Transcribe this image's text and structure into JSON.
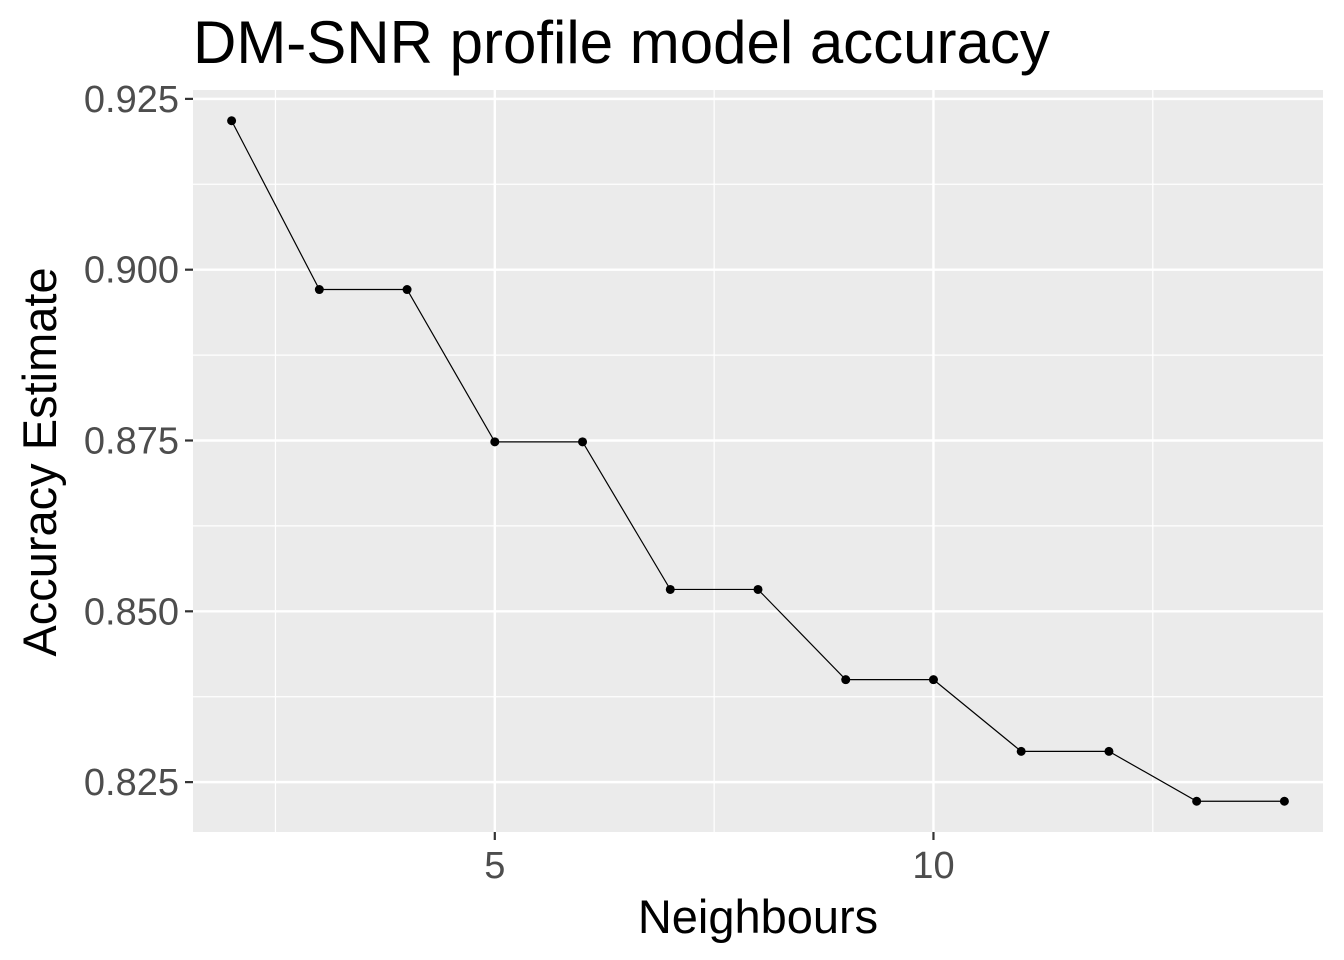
{
  "chart_data": {
    "type": "line",
    "title": "DM-SNR profile model accuracy",
    "xlabel": "Neighbours",
    "ylabel": "Accuracy Estimate",
    "x": [
      2,
      3,
      4,
      5,
      6,
      7,
      8,
      9,
      10,
      11,
      12,
      13,
      14
    ],
    "series": [
      {
        "values": [
          0.9218,
          0.8971,
          0.8971,
          0.8748,
          0.8748,
          0.8532,
          0.8532,
          0.84,
          0.84,
          0.8295,
          0.8295,
          0.8222,
          0.8222
        ]
      }
    ],
    "xlim": [
      1.56,
      14.44
    ],
    "ylim": [
      0.8177,
      0.9263
    ],
    "x_ticks": [
      5,
      10
    ],
    "x_tick_labels": [
      "5",
      "10"
    ],
    "x_minor_ticks": [
      2.5,
      7.5,
      12.5
    ],
    "y_ticks": [
      0.825,
      0.85,
      0.875,
      0.9,
      0.925
    ],
    "y_tick_labels": [
      "0.825",
      "0.850",
      "0.875",
      "0.900",
      "0.925"
    ],
    "y_minor_ticks": [
      0.8375,
      0.8625,
      0.8875,
      0.9125
    ],
    "grid": true,
    "legend": "none",
    "colors": {
      "panel_background": "#ebebeb",
      "grid": "#ffffff",
      "line": "#000000",
      "points": "#000000",
      "tick_labels": "#4d4d4d",
      "tick_marks": "#333333"
    }
  }
}
